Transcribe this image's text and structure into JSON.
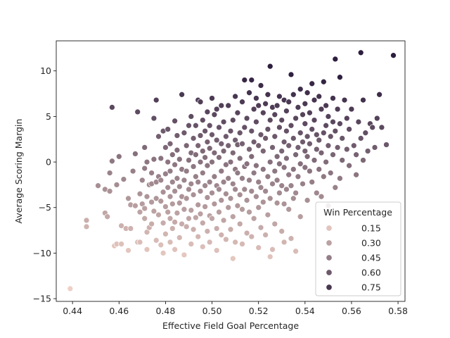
{
  "chart_data": {
    "type": "scatter",
    "title": "",
    "xlabel": "Effective Field Goal Percentage",
    "ylabel": "Average Scoring Margin",
    "xlim": [
      0.433,
      0.583
    ],
    "ylim": [
      -15.3,
      13.3
    ],
    "xticks": [
      0.44,
      0.46,
      0.48,
      0.5,
      0.52,
      0.54,
      0.56,
      0.58
    ],
    "xtick_labels": [
      "0.44",
      "0.46",
      "0.48",
      "0.50",
      "0.52",
      "0.54",
      "0.56",
      "0.58"
    ],
    "yticks": [
      -15,
      -10,
      -5,
      0,
      5,
      10
    ],
    "ytick_labels": [
      "−15",
      "−10",
      "−5",
      "0",
      "5",
      "10"
    ],
    "grid": false,
    "hue": "Win Percentage",
    "color_low": "#eed0c6",
    "color_high": "#2d1e3e",
    "hue_range": [
      0.1,
      0.85
    ],
    "legend": {
      "title": "Win Percentage",
      "position": "lower-right",
      "entries": [
        {
          "label": "0.15",
          "value": 0.15
        },
        {
          "label": "0.30",
          "value": 0.3
        },
        {
          "label": "0.45",
          "value": 0.45
        },
        {
          "label": "0.60",
          "value": 0.6
        },
        {
          "label": "0.75",
          "value": 0.75
        }
      ]
    },
    "points": [
      [
        0.439,
        -13.9
      ],
      [
        0.446,
        -6.4
      ],
      [
        0.446,
        -7.1
      ],
      [
        0.451,
        -2.6
      ],
      [
        0.454,
        -5.6
      ],
      [
        0.454,
        -3.0
      ],
      [
        0.455,
        -6.0
      ],
      [
        0.456,
        -3.2
      ],
      [
        0.456,
        -1.2
      ],
      [
        0.457,
        0.1
      ],
      [
        0.457,
        6.0
      ],
      [
        0.458,
        -9.2
      ],
      [
        0.459,
        -9.0
      ],
      [
        0.459,
        -2.5
      ],
      [
        0.46,
        0.6
      ],
      [
        0.461,
        -9.0
      ],
      [
        0.461,
        -7.0
      ],
      [
        0.462,
        -1.9
      ],
      [
        0.463,
        -7.3
      ],
      [
        0.464,
        -9.7
      ],
      [
        0.464,
        -4.0
      ],
      [
        0.465,
        -7.3
      ],
      [
        0.465,
        -4.7
      ],
      [
        0.466,
        -1.0
      ],
      [
        0.467,
        -4.8
      ],
      [
        0.467,
        0.9
      ],
      [
        0.468,
        -8.8
      ],
      [
        0.468,
        5.5
      ],
      [
        0.469,
        -8.8
      ],
      [
        0.469,
        -5.5
      ],
      [
        0.469,
        -3.5
      ],
      [
        0.47,
        -4.6
      ],
      [
        0.47,
        -2.0
      ],
      [
        0.471,
        -6.2
      ],
      [
        0.471,
        -5.1
      ],
      [
        0.471,
        -0.7
      ],
      [
        0.471,
        1.6
      ],
      [
        0.472,
        -9.6
      ],
      [
        0.472,
        -7.7
      ],
      [
        0.472,
        -3.8
      ],
      [
        0.472,
        0.0
      ],
      [
        0.473,
        -2.5
      ],
      [
        0.473,
        -7.2
      ],
      [
        0.474,
        -6.8
      ],
      [
        0.474,
        -2.4
      ],
      [
        0.474,
        -4.4
      ],
      [
        0.474,
        -1.2
      ],
      [
        0.475,
        -5.4
      ],
      [
        0.475,
        0.3
      ],
      [
        0.475,
        4.8
      ],
      [
        0.476,
        -8.6
      ],
      [
        0.476,
        -4.0
      ],
      [
        0.476,
        -2.2
      ],
      [
        0.476,
        6.8
      ],
      [
        0.477,
        -5.8
      ],
      [
        0.477,
        -1.6
      ],
      [
        0.477,
        2.8
      ],
      [
        0.478,
        -9.1
      ],
      [
        0.478,
        -2.0
      ],
      [
        0.478,
        -4.3
      ],
      [
        0.478,
        0.4
      ],
      [
        0.479,
        -10.0
      ],
      [
        0.479,
        -6.7
      ],
      [
        0.479,
        -3.3
      ],
      [
        0.479,
        3.4
      ],
      [
        0.48,
        -7.9
      ],
      [
        0.48,
        -4.9
      ],
      [
        0.48,
        -1.3
      ],
      [
        0.48,
        1.6
      ],
      [
        0.481,
        -5.5
      ],
      [
        0.481,
        -2.8
      ],
      [
        0.481,
        0.0
      ],
      [
        0.481,
        3.6
      ],
      [
        0.482,
        -8.8
      ],
      [
        0.482,
        -6.2
      ],
      [
        0.482,
        -3.8
      ],
      [
        0.482,
        -1.0
      ],
      [
        0.482,
        2.0
      ],
      [
        0.483,
        -7.3
      ],
      [
        0.483,
        -4.6
      ],
      [
        0.483,
        -2.2
      ],
      [
        0.483,
        0.8
      ],
      [
        0.484,
        -9.6
      ],
      [
        0.484,
        -6.6
      ],
      [
        0.484,
        -3.2
      ],
      [
        0.484,
        -0.3
      ],
      [
        0.484,
        4.5
      ],
      [
        0.485,
        -5.6
      ],
      [
        0.485,
        -1.8
      ],
      [
        0.485,
        1.3
      ],
      [
        0.485,
        2.9
      ],
      [
        0.486,
        -8.3
      ],
      [
        0.486,
        -4.5
      ],
      [
        0.486,
        -2.7
      ],
      [
        0.486,
        0.3
      ],
      [
        0.487,
        -6.8
      ],
      [
        0.487,
        -3.8
      ],
      [
        0.487,
        -0.8
      ],
      [
        0.487,
        7.4
      ],
      [
        0.488,
        -10.2
      ],
      [
        0.488,
        -5.2
      ],
      [
        0.488,
        -2.0
      ],
      [
        0.488,
        3.2
      ],
      [
        0.489,
        -7.1
      ],
      [
        0.489,
        -4.0
      ],
      [
        0.489,
        -1.0
      ],
      [
        0.489,
        1.8
      ],
      [
        0.49,
        -6.2
      ],
      [
        0.49,
        -3.0
      ],
      [
        0.49,
        0.2
      ],
      [
        0.49,
        4.0
      ],
      [
        0.491,
        -9.0
      ],
      [
        0.491,
        -5.3
      ],
      [
        0.491,
        -2.4
      ],
      [
        0.491,
        1.0
      ],
      [
        0.491,
        5.0
      ],
      [
        0.492,
        -7.4
      ],
      [
        0.492,
        -3.6
      ],
      [
        0.492,
        -0.5
      ],
      [
        0.492,
        2.6
      ],
      [
        0.493,
        -6.1
      ],
      [
        0.493,
        -1.6
      ],
      [
        0.493,
        0.8
      ],
      [
        0.493,
        4.0
      ],
      [
        0.494,
        -8.2
      ],
      [
        0.494,
        -4.7
      ],
      [
        0.494,
        -2.2
      ],
      [
        0.494,
        1.8
      ],
      [
        0.494,
        6.8
      ],
      [
        0.495,
        -5.7
      ],
      [
        0.495,
        -3.2
      ],
      [
        0.495,
        0.0
      ],
      [
        0.495,
        2.9
      ],
      [
        0.495,
        6.6
      ],
      [
        0.496,
        -9.3
      ],
      [
        0.496,
        -6.7
      ],
      [
        0.496,
        -1.2
      ],
      [
        0.496,
        1.2
      ],
      [
        0.496,
        4.6
      ],
      [
        0.497,
        -4.9
      ],
      [
        0.497,
        -2.6
      ],
      [
        0.497,
        0.5
      ],
      [
        0.497,
        3.4
      ],
      [
        0.498,
        -7.6
      ],
      [
        0.498,
        -3.9
      ],
      [
        0.498,
        -0.4
      ],
      [
        0.498,
        2.2
      ],
      [
        0.498,
        5.5
      ],
      [
        0.499,
        -8.8
      ],
      [
        0.499,
        -5.9
      ],
      [
        0.499,
        -2.2
      ],
      [
        0.499,
        1.5
      ],
      [
        0.499,
        4.0
      ],
      [
        0.5,
        -6.2
      ],
      [
        0.5,
        -3.4
      ],
      [
        0.5,
        0.0
      ],
      [
        0.5,
        3.0
      ],
      [
        0.5,
        7.0
      ],
      [
        0.501,
        -4.6
      ],
      [
        0.501,
        -1.6
      ],
      [
        0.501,
        1.0
      ],
      [
        0.501,
        5.2
      ],
      [
        0.502,
        -9.7
      ],
      [
        0.502,
        -7.3
      ],
      [
        0.502,
        -2.6
      ],
      [
        0.502,
        2.4
      ],
      [
        0.502,
        5.8
      ],
      [
        0.503,
        -5.5
      ],
      [
        0.503,
        -3.0
      ],
      [
        0.503,
        0.5
      ],
      [
        0.503,
        3.8
      ],
      [
        0.504,
        -8.0
      ],
      [
        0.504,
        -4.2
      ],
      [
        0.504,
        -1.0
      ],
      [
        0.504,
        2.0
      ],
      [
        0.504,
        6.2
      ],
      [
        0.505,
        -6.4
      ],
      [
        0.505,
        -2.2
      ],
      [
        0.505,
        1.2
      ],
      [
        0.505,
        4.4
      ],
      [
        0.506,
        -8.5
      ],
      [
        0.506,
        -3.5
      ],
      [
        0.506,
        -0.3
      ],
      [
        0.506,
        2.8
      ],
      [
        0.507,
        -5.0
      ],
      [
        0.507,
        -1.8
      ],
      [
        0.507,
        1.8
      ],
      [
        0.507,
        6.2
      ],
      [
        0.508,
        -7.4
      ],
      [
        0.508,
        -4.0
      ],
      [
        0.508,
        0.0
      ],
      [
        0.508,
        3.4
      ],
      [
        0.509,
        -10.6
      ],
      [
        0.509,
        -6.0
      ],
      [
        0.509,
        -2.4
      ],
      [
        0.509,
        1.0
      ],
      [
        0.509,
        4.6
      ],
      [
        0.51,
        -8.8
      ],
      [
        0.51,
        -3.0
      ],
      [
        0.51,
        -0.8
      ],
      [
        0.51,
        2.4
      ],
      [
        0.51,
        7.2
      ],
      [
        0.511,
        -4.8
      ],
      [
        0.511,
        -1.2
      ],
      [
        0.511,
        1.9
      ],
      [
        0.511,
        5.4
      ],
      [
        0.512,
        -6.8
      ],
      [
        0.512,
        -3.6
      ],
      [
        0.512,
        0.4
      ],
      [
        0.512,
        3.2
      ],
      [
        0.513,
        -9.0
      ],
      [
        0.513,
        -5.2
      ],
      [
        0.513,
        -1.8
      ],
      [
        0.513,
        2.0
      ],
      [
        0.513,
        6.6
      ],
      [
        0.514,
        -3.0
      ],
      [
        0.514,
        -0.5
      ],
      [
        0.514,
        3.8
      ],
      [
        0.514,
        9.0
      ],
      [
        0.515,
        -7.8
      ],
      [
        0.515,
        -4.2
      ],
      [
        0.515,
        -0.2
      ],
      [
        0.515,
        4.8
      ],
      [
        0.516,
        -5.5
      ],
      [
        0.516,
        -2.0
      ],
      [
        0.516,
        1.4
      ],
      [
        0.516,
        7.6
      ],
      [
        0.517,
        -8.2
      ],
      [
        0.517,
        -3.2
      ],
      [
        0.517,
        0.6
      ],
      [
        0.517,
        3.4
      ],
      [
        0.517,
        9.0
      ],
      [
        0.518,
        -6.2
      ],
      [
        0.518,
        -1.2
      ],
      [
        0.518,
        2.2
      ],
      [
        0.518,
        5.8
      ],
      [
        0.519,
        -3.8
      ],
      [
        0.519,
        -0.4
      ],
      [
        0.519,
        4.4
      ],
      [
        0.519,
        7.0
      ],
      [
        0.52,
        -9.4
      ],
      [
        0.52,
        -5.0
      ],
      [
        0.52,
        -2.2
      ],
      [
        0.52,
        1.8
      ],
      [
        0.52,
        6.2
      ],
      [
        0.521,
        -7.2
      ],
      [
        0.521,
        -2.8
      ],
      [
        0.521,
        3.0
      ],
      [
        0.521,
        8.4
      ],
      [
        0.522,
        -4.4
      ],
      [
        0.522,
        -0.8
      ],
      [
        0.522,
        1.2
      ],
      [
        0.522,
        5.4
      ],
      [
        0.523,
        -8.0
      ],
      [
        0.523,
        -3.2
      ],
      [
        0.523,
        2.6
      ],
      [
        0.523,
        6.4
      ],
      [
        0.524,
        -5.8
      ],
      [
        0.524,
        -1.6
      ],
      [
        0.524,
        3.6
      ],
      [
        0.524,
        7.4
      ],
      [
        0.525,
        -10.4
      ],
      [
        0.525,
        -4.0
      ],
      [
        0.525,
        0.0
      ],
      [
        0.525,
        4.6
      ],
      [
        0.525,
        10.5
      ],
      [
        0.526,
        -9.6
      ],
      [
        0.526,
        -2.4
      ],
      [
        0.526,
        1.6
      ],
      [
        0.526,
        6.0
      ],
      [
        0.527,
        -6.8
      ],
      [
        0.527,
        -1.0
      ],
      [
        0.527,
        2.8
      ],
      [
        0.527,
        5.2
      ],
      [
        0.528,
        -4.5
      ],
      [
        0.528,
        -2.0
      ],
      [
        0.528,
        0.6
      ],
      [
        0.528,
        6.2
      ],
      [
        0.529,
        -3.4
      ],
      [
        0.529,
        -0.2
      ],
      [
        0.529,
        3.8
      ],
      [
        0.529,
        7.2
      ],
      [
        0.53,
        -7.6
      ],
      [
        0.53,
        -2.6
      ],
      [
        0.53,
        1.2
      ],
      [
        0.53,
        4.6
      ],
      [
        0.531,
        -8.8
      ],
      [
        0.531,
        -4.6
      ],
      [
        0.531,
        -0.6
      ],
      [
        0.531,
        2.2
      ],
      [
        0.531,
        6.8
      ],
      [
        0.532,
        -3.0
      ],
      [
        0.532,
        0.4
      ],
      [
        0.532,
        3.4
      ],
      [
        0.532,
        5.6
      ],
      [
        0.533,
        -5.2
      ],
      [
        0.533,
        -1.4
      ],
      [
        0.533,
        1.8
      ],
      [
        0.533,
        6.6
      ],
      [
        0.534,
        -8.4
      ],
      [
        0.534,
        -2.6
      ],
      [
        0.534,
        4.0
      ],
      [
        0.534,
        9.6
      ],
      [
        0.535,
        -4.0
      ],
      [
        0.535,
        -0.8
      ],
      [
        0.535,
        2.6
      ],
      [
        0.535,
        7.4
      ],
      [
        0.536,
        -9.8
      ],
      [
        0.536,
        -3.4
      ],
      [
        0.536,
        0.8
      ],
      [
        0.536,
        4.8
      ],
      [
        0.537,
        -1.6
      ],
      [
        0.537,
        1.6
      ],
      [
        0.537,
        6.0
      ],
      [
        0.538,
        -6.0
      ],
      [
        0.538,
        -0.2
      ],
      [
        0.538,
        3.2
      ],
      [
        0.538,
        8.0
      ],
      [
        0.539,
        -2.4
      ],
      [
        0.539,
        2.2
      ],
      [
        0.539,
        5.2
      ],
      [
        0.54,
        -0.6
      ],
      [
        0.54,
        1.2
      ],
      [
        0.54,
        4.2
      ],
      [
        0.54,
        6.4
      ],
      [
        0.541,
        -4.2
      ],
      [
        0.541,
        0.6
      ],
      [
        0.541,
        2.8
      ],
      [
        0.541,
        7.6
      ],
      [
        0.542,
        -1.0
      ],
      [
        0.542,
        2.0
      ],
      [
        0.542,
        5.4
      ],
      [
        0.543,
        -2.2
      ],
      [
        0.543,
        3.6
      ],
      [
        0.543,
        8.6
      ],
      [
        0.544,
        0.2
      ],
      [
        0.544,
        4.6
      ],
      [
        0.544,
        6.8
      ],
      [
        0.545,
        -3.4
      ],
      [
        0.545,
        1.4
      ],
      [
        0.545,
        3.0
      ],
      [
        0.546,
        -0.8
      ],
      [
        0.546,
        2.4
      ],
      [
        0.546,
        7.2
      ],
      [
        0.547,
        -3.8
      ],
      [
        0.547,
        1.0
      ],
      [
        0.547,
        5.8
      ],
      [
        0.548,
        -1.6
      ],
      [
        0.548,
        3.2
      ],
      [
        0.548,
        8.8
      ],
      [
        0.549,
        0.0
      ],
      [
        0.549,
        4.0
      ],
      [
        0.549,
        6.2
      ],
      [
        0.55,
        -4.8
      ],
      [
        0.55,
        1.8
      ],
      [
        0.55,
        5.0
      ],
      [
        0.551,
        -1.2
      ],
      [
        0.551,
        2.8
      ],
      [
        0.552,
        0.8
      ],
      [
        0.552,
        4.4
      ],
      [
        0.552,
        7.0
      ],
      [
        0.553,
        11.3
      ],
      [
        0.553,
        -2.8
      ],
      [
        0.553,
        3.4
      ],
      [
        0.554,
        1.6
      ],
      [
        0.554,
        5.8
      ],
      [
        0.555,
        -1.8
      ],
      [
        0.555,
        9.3
      ],
      [
        0.555,
        4.2
      ],
      [
        0.556,
        0.2
      ],
      [
        0.556,
        2.6
      ],
      [
        0.557,
        6.8
      ],
      [
        0.558,
        1.4
      ],
      [
        0.558,
        4.8
      ],
      [
        0.559,
        -0.4
      ],
      [
        0.559,
        3.6
      ],
      [
        0.56,
        5.8
      ],
      [
        0.561,
        1.8
      ],
      [
        0.562,
        -1.4
      ],
      [
        0.562,
        0.8
      ],
      [
        0.563,
        4.4
      ],
      [
        0.564,
        12.0
      ],
      [
        0.564,
        2.6
      ],
      [
        0.565,
        6.8
      ],
      [
        0.565,
        0.2
      ],
      [
        0.566,
        3.2
      ],
      [
        0.567,
        1.2
      ],
      [
        0.568,
        4.2
      ],
      [
        0.569,
        3.8
      ],
      [
        0.57,
        1.6
      ],
      [
        0.571,
        4.8
      ],
      [
        0.572,
        7.4
      ],
      [
        0.573,
        3.8
      ],
      [
        0.575,
        1.9
      ],
      [
        0.578,
        11.7
      ]
    ]
  }
}
